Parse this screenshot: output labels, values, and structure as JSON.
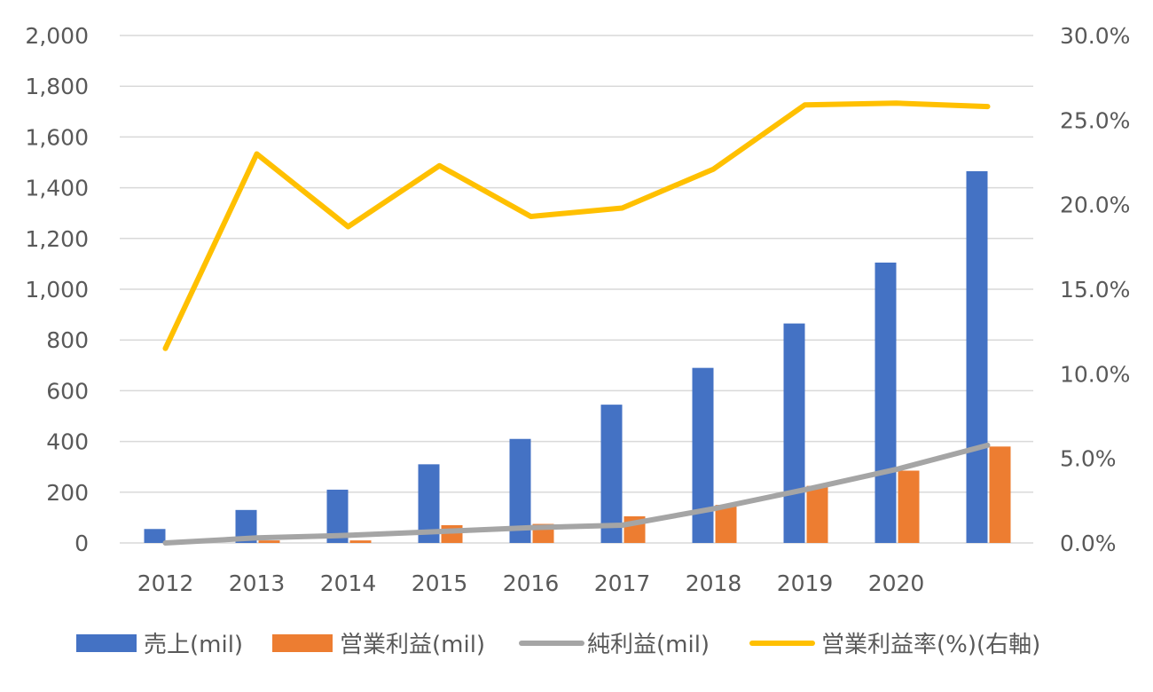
{
  "chart_data": {
    "type": "bar",
    "categories": [
      "2012",
      "2013",
      "2014",
      "2015",
      "2016",
      "2017",
      "2018",
      "2019",
      "2020",
      ""
    ],
    "series": [
      {
        "name": "売上(mil)",
        "type": "bar",
        "axis": "left",
        "color": "#4472C4",
        "values": [
          55,
          130,
          210,
          310,
          410,
          545,
          690,
          865,
          1105,
          1465
        ]
      },
      {
        "name": "営業利益(mil)",
        "type": "bar",
        "axis": "left",
        "color": "#ED7D31",
        "values": [
          5,
          10,
          10,
          70,
          75,
          105,
          150,
          225,
          285,
          380
        ]
      },
      {
        "name": "純利益(mil)",
        "type": "line",
        "axis": "left",
        "color": "#A5A5A5",
        "values": [
          0,
          20,
          30,
          45,
          60,
          70,
          135,
          210,
          290,
          385
        ]
      },
      {
        "name": "営業利益率(%)(右軸)",
        "type": "line",
        "axis": "right",
        "color": "#FFC000",
        "values": [
          11.5,
          23.0,
          18.7,
          22.3,
          19.3,
          19.8,
          22.1,
          25.9,
          26.0,
          25.8
        ]
      }
    ],
    "y_left": {
      "min": 0,
      "max": 2000,
      "step": 200,
      "tick_labels": [
        "0",
        "200",
        "400",
        "600",
        "800",
        "1,000",
        "1,200",
        "1,400",
        "1,600",
        "1,800",
        "2,000"
      ]
    },
    "y_right": {
      "min": 0,
      "max": 30,
      "step": 5,
      "tick_labels": [
        "0.0%",
        "5.0%",
        "10.0%",
        "15.0%",
        "20.0%",
        "25.0%",
        "30.0%"
      ]
    },
    "grid": true,
    "legend_position": "bottom"
  }
}
